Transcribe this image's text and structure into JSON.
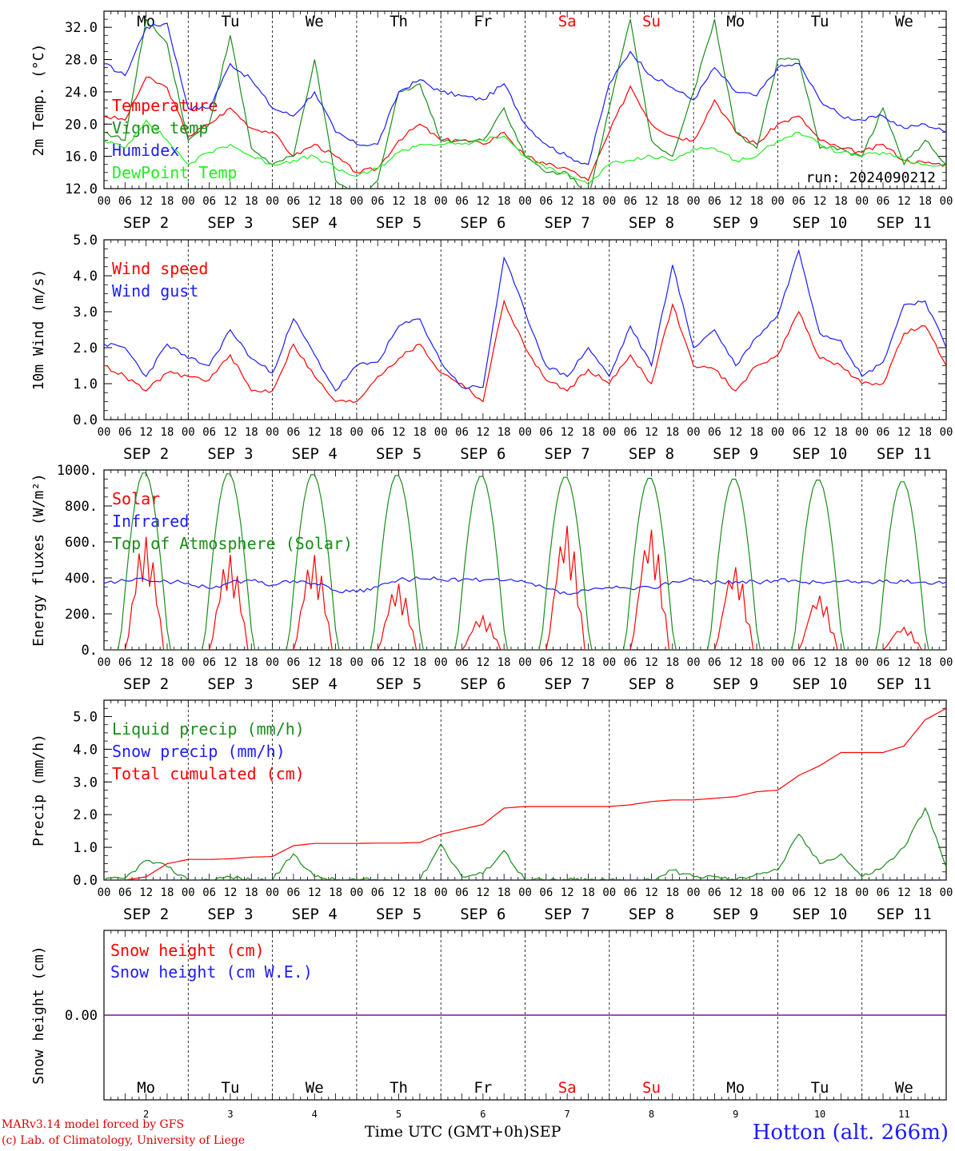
{
  "run_label": "run: 2024090212",
  "colors": {
    "red": "#ff0000",
    "green": "#1a8c1a",
    "blue": "#1c1cff",
    "lightgreen": "#22ee22",
    "purple": "#7f00a0"
  },
  "days": [
    {
      "abbr": "Mo",
      "label": "SEP  2",
      "num": "2",
      "weekend": false
    },
    {
      "abbr": "Tu",
      "label": "SEP  3",
      "num": "3",
      "weekend": false
    },
    {
      "abbr": "We",
      "label": "SEP  4",
      "num": "4",
      "weekend": false
    },
    {
      "abbr": "Th",
      "label": "SEP  5",
      "num": "5",
      "weekend": false
    },
    {
      "abbr": "Fr",
      "label": "SEP  6",
      "num": "6",
      "weekend": false
    },
    {
      "abbr": "Sa",
      "label": "SEP  7",
      "num": "7",
      "weekend": true
    },
    {
      "abbr": "Su",
      "label": "SEP  8",
      "num": "8",
      "weekend": true
    },
    {
      "abbr": "Mo",
      "label": "SEP  9",
      "num": "9",
      "weekend": false
    },
    {
      "abbr": "Tu",
      "label": "SEP 10",
      "num": "10",
      "weekend": false
    },
    {
      "abbr": "We",
      "label": "SEP 11",
      "num": "11",
      "weekend": false
    }
  ],
  "hour_ticks": [
    "00",
    "06",
    "12",
    "18"
  ],
  "hour_end": "00",
  "chart_data": [
    {
      "type": "line",
      "ylabel": "2m Temp. (°C)",
      "ylim": [
        12,
        34
      ],
      "yticks": [
        "12.0",
        "16.0",
        "20.0",
        "24.0",
        "28.0",
        "32.0"
      ],
      "ytick_values": [
        12,
        16,
        20,
        24,
        28,
        32
      ],
      "x_hours": [
        0,
        6,
        12,
        18,
        24,
        30,
        36,
        42,
        48,
        54,
        60,
        66,
        72,
        78,
        84,
        90,
        96,
        102,
        108,
        114,
        120,
        126,
        132,
        138,
        144,
        150,
        156,
        162,
        168,
        174,
        180,
        186,
        192,
        198,
        204,
        210,
        216,
        222,
        228,
        234,
        240
      ],
      "series": [
        {
          "name": "Temperature",
          "color": "red",
          "values": [
            21,
            20.5,
            25.8,
            24.5,
            18.5,
            20,
            22,
            19.5,
            19,
            16,
            17.5,
            16,
            14,
            14.5,
            18,
            20,
            18,
            18,
            17.5,
            19,
            16,
            15,
            14.5,
            13,
            19,
            24.7,
            20,
            18.5,
            18,
            23,
            19,
            17.5,
            20,
            21,
            18,
            17,
            16.5,
            17.5,
            15.5,
            15.2,
            15
          ]
        },
        {
          "name": "Vigne temp",
          "color": "green",
          "values": [
            19,
            18,
            33,
            30,
            18,
            20,
            31,
            17,
            15,
            16,
            28,
            13,
            11,
            13,
            24,
            25,
            18,
            18,
            18,
            22,
            16,
            14,
            14,
            11,
            22,
            33,
            18,
            16,
            24,
            33,
            19,
            17,
            28,
            28,
            17,
            17,
            16,
            22,
            15,
            18,
            15
          ]
        },
        {
          "name": "Humidex",
          "color": "blue",
          "values": [
            27.5,
            26,
            32,
            32.5,
            22,
            22,
            27.5,
            25.5,
            22,
            21,
            24,
            19,
            17.5,
            17.5,
            24,
            25.5,
            24,
            23.5,
            23,
            25,
            20,
            17.5,
            16,
            15,
            25,
            29,
            26,
            24.5,
            23,
            27,
            24,
            23.5,
            27,
            27.5,
            23,
            21,
            20.5,
            21,
            19.5,
            20,
            19
          ]
        },
        {
          "name": "DewPoint Temp",
          "color": "lightgreen",
          "values": [
            18,
            17,
            20.5,
            18,
            15,
            16.5,
            17.5,
            16,
            15,
            15.5,
            16,
            14.5,
            13.5,
            14.5,
            16.5,
            17.5,
            17.5,
            17.5,
            18,
            18.5,
            16,
            14.5,
            14,
            12.5,
            15,
            15.5,
            16,
            15.5,
            17,
            17,
            15.5,
            16,
            18,
            19,
            17.5,
            16.5,
            16,
            16.5,
            15.5,
            15,
            14.8
          ]
        }
      ]
    },
    {
      "type": "line",
      "ylabel": "10m Wind (m/s)",
      "ylim": [
        0,
        5
      ],
      "yticks": [
        "0.0",
        "1.0",
        "2.0",
        "3.0",
        "4.0",
        "5.0"
      ],
      "ytick_values": [
        0,
        1,
        2,
        3,
        4,
        5
      ],
      "x_hours": [
        0,
        6,
        12,
        18,
        24,
        30,
        36,
        42,
        48,
        54,
        60,
        66,
        72,
        78,
        84,
        90,
        96,
        102,
        108,
        114,
        120,
        126,
        132,
        138,
        144,
        150,
        156,
        162,
        168,
        174,
        180,
        186,
        192,
        198,
        204,
        210,
        216,
        222,
        228,
        234,
        240
      ],
      "series": [
        {
          "name": "Wind speed",
          "color": "red",
          "values": [
            1.5,
            1.2,
            0.8,
            1.3,
            1.2,
            1.1,
            1.8,
            0.8,
            0.8,
            2.1,
            1.2,
            0.5,
            0.5,
            1.2,
            1.7,
            2.1,
            1.3,
            1.0,
            0.5,
            3.3,
            2.0,
            1.1,
            0.8,
            1.4,
            1.0,
            1.8,
            1.0,
            3.2,
            1.5,
            1.4,
            0.8,
            1.5,
            1.8,
            3.0,
            1.7,
            1.5,
            1.0,
            1.0,
            2.4,
            2.6,
            1.5
          ]
        },
        {
          "name": "Wind gust",
          "color": "blue",
          "values": [
            2.1,
            2.0,
            1.2,
            2.1,
            1.7,
            1.5,
            2.5,
            1.7,
            1.3,
            2.8,
            1.8,
            0.8,
            1.5,
            1.6,
            2.6,
            2.8,
            1.6,
            0.9,
            0.9,
            4.5,
            3.0,
            1.5,
            1.2,
            2.0,
            1.2,
            2.6,
            1.5,
            4.3,
            2.0,
            2.5,
            1.5,
            2.3,
            2.9,
            4.7,
            2.4,
            2.2,
            1.2,
            1.6,
            3.2,
            3.3,
            2.0
          ]
        }
      ]
    },
    {
      "type": "line",
      "ylabel": "Energy fluxes (W/m²)",
      "ylim": [
        0,
        1000
      ],
      "yticks": [
        "0.",
        "200.",
        "400.",
        "600.",
        "800.",
        "1000."
      ],
      "ytick_values": [
        0,
        200,
        400,
        600,
        800,
        1000
      ],
      "series": [
        {
          "name": "Solar",
          "color": "red",
          "peaks": [
            630,
            530,
            530,
            370,
            190,
            700,
            680,
            470,
            310,
            130
          ]
        },
        {
          "name": "Infrared",
          "color": "blue",
          "x_hours": [
            0,
            6,
            12,
            18,
            24,
            30,
            36,
            42,
            48,
            54,
            60,
            66,
            72,
            78,
            84,
            90,
            96,
            102,
            108,
            114,
            120,
            126,
            132,
            138,
            144,
            150,
            156,
            162,
            168,
            174,
            180,
            186,
            192,
            198,
            204,
            210,
            216,
            222,
            228,
            234,
            240
          ],
          "values": [
            370,
            385,
            390,
            380,
            370,
            340,
            375,
            385,
            360,
            385,
            370,
            330,
            320,
            350,
            390,
            395,
            392,
            390,
            388,
            385,
            375,
            340,
            310,
            330,
            345,
            340,
            345,
            380,
            390,
            375,
            380,
            375,
            385,
            380,
            375,
            380,
            378,
            378,
            378,
            377,
            377
          ]
        },
        {
          "name": "Top of Atmosphere (Solar)",
          "color": "green",
          "peaks": [
            990,
            985,
            980,
            975,
            970,
            965,
            960,
            955,
            950,
            940
          ]
        }
      ]
    },
    {
      "type": "line",
      "ylabel": "Precip (mm/h)",
      "ylim": [
        0,
        5.5
      ],
      "yticks": [
        "0.0",
        "1.0",
        "2.0",
        "3.0",
        "4.0",
        "5.0"
      ],
      "ytick_values": [
        0,
        1,
        2,
        3,
        4,
        5
      ],
      "x_hours": [
        0,
        6,
        12,
        18,
        24,
        30,
        36,
        42,
        48,
        54,
        60,
        66,
        72,
        78,
        84,
        90,
        96,
        102,
        108,
        114,
        120,
        126,
        132,
        138,
        144,
        150,
        156,
        162,
        168,
        174,
        180,
        186,
        192,
        198,
        204,
        210,
        216,
        222,
        228,
        234,
        240
      ],
      "series": [
        {
          "name": "Liquid precip (mm/h)",
          "color": "green",
          "values": [
            0,
            0.05,
            0.6,
            0.4,
            0,
            0,
            0.1,
            0,
            0,
            0.8,
            0.1,
            0,
            0,
            0,
            0,
            0,
            1.1,
            0.1,
            0.2,
            0.9,
            0,
            0,
            0,
            0,
            0,
            0,
            0,
            0.3,
            0.1,
            0.1,
            0,
            0.2,
            0.3,
            1.4,
            0.5,
            0.8,
            0.1,
            0.4,
            1.0,
            2.2,
            0.4
          ]
        },
        {
          "name": "Snow precip (mm/h)",
          "color": "blue",
          "values": [
            0,
            0,
            0,
            0,
            0,
            0,
            0,
            0,
            0,
            0,
            0,
            0,
            0,
            0,
            0,
            0,
            0,
            0,
            0,
            0,
            0,
            0,
            0,
            0,
            0,
            0,
            0,
            0,
            0,
            0,
            0,
            0,
            0,
            0,
            0,
            0,
            0,
            0,
            0,
            0,
            0
          ]
        },
        {
          "name": "Total cumulated (cm)",
          "color": "red",
          "values": [
            0,
            0,
            0.1,
            0.5,
            0.63,
            0.63,
            0.65,
            0.7,
            0.72,
            1.05,
            1.12,
            1.12,
            1.12,
            1.13,
            1.13,
            1.15,
            1.4,
            1.55,
            1.7,
            2.2,
            2.25,
            2.25,
            2.25,
            2.25,
            2.25,
            2.3,
            2.4,
            2.45,
            2.45,
            2.5,
            2.55,
            2.7,
            2.75,
            3.2,
            3.5,
            3.9,
            3.9,
            3.9,
            4.1,
            4.9,
            5.25
          ]
        }
      ]
    },
    {
      "type": "line",
      "ylabel": "Snow height (cm)",
      "yticks": [
        "0.00"
      ],
      "series": [
        {
          "name": "Snow height (cm)",
          "color": "red",
          "values": [
            0,
            0
          ]
        },
        {
          "name": "Snow height (cm W.E.)",
          "color": "blue",
          "values": [
            0,
            0
          ]
        }
      ]
    }
  ],
  "footer": {
    "model": "MARv3.14 model forced by GFS",
    "copyright": "(c) Lab. of Climatology, University of Liege",
    "time_axis": "Time UTC (GMT+0h)",
    "month": "SEP",
    "station": "Hotton (alt. 266m)"
  }
}
